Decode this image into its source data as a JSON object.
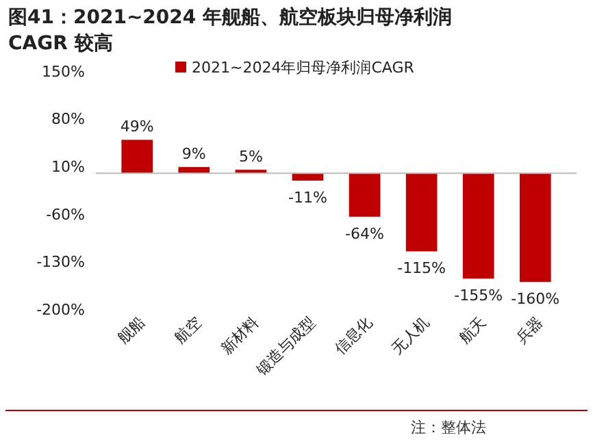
{
  "chart_data": {
    "type": "bar",
    "title": "图41：2021~2024 年舰船、航空板块归母净利润CAGR 较高",
    "categories": [
      "舰船",
      "航空",
      "新材料",
      "锻造与成型",
      "信息化",
      "无人机",
      "航天",
      "兵器"
    ],
    "series": [
      {
        "name": "2021~2024年归母净利润CAGR",
        "color": "#c00000",
        "values": [
          49,
          9,
          5,
          -11,
          -64,
          -115,
          -155,
          -160
        ]
      }
    ],
    "value_labels": [
      "49%",
      "9%",
      "5%",
      "-11%",
      "-64%",
      "-115%",
      "-155%",
      "-160%"
    ],
    "ylim": [
      -200,
      150
    ],
    "yticks": [
      {
        "value": 150,
        "label": "150%"
      },
      {
        "value": 80,
        "label": "80%"
      },
      {
        "value": 10,
        "label": "10%"
      },
      {
        "value": -60,
        "label": "-60%"
      },
      {
        "value": -130,
        "label": "-130%"
      },
      {
        "value": -200,
        "label": "-200%"
      }
    ],
    "grid": false,
    "legend": "top",
    "annotations": [
      "注：整体法"
    ]
  }
}
